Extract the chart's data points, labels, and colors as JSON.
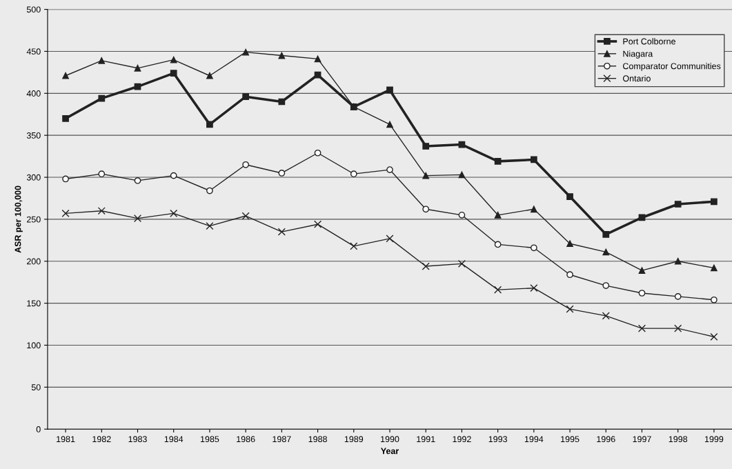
{
  "chart_data": {
    "type": "line",
    "xlabel": "Year",
    "ylabel": "ASR per 100,000",
    "categories": [
      "1981",
      "1982",
      "1983",
      "1984",
      "1985",
      "1986",
      "1987",
      "1988",
      "1989",
      "1990",
      "1991",
      "1992",
      "1993",
      "1994",
      "1995",
      "1996",
      "1997",
      "1998",
      "1999"
    ],
    "series": [
      {
        "name": "Port Colborne",
        "color": "#222222",
        "marker": "square",
        "values": [
          370,
          394,
          408,
          424,
          363,
          396,
          390,
          422,
          384,
          404,
          337,
          339,
          319,
          321,
          277,
          232,
          252,
          268,
          271
        ]
      },
      {
        "name": "Niagara",
        "color": "#222222",
        "marker": "triangle",
        "values": [
          421,
          439,
          430,
          440,
          421,
          449,
          445,
          441,
          384,
          363,
          302,
          303,
          255,
          262,
          221,
          211,
          189,
          200,
          192
        ]
      },
      {
        "name": "Comparator Communities",
        "color": "#222222",
        "marker": "circle",
        "values": [
          298,
          304,
          296,
          302,
          284,
          315,
          305,
          329,
          304,
          309,
          262,
          255,
          220,
          216,
          184,
          171,
          162,
          158,
          154
        ]
      },
      {
        "name": "Ontario",
        "color": "#222222",
        "marker": "cross",
        "values": [
          257,
          260,
          251,
          257,
          242,
          254,
          235,
          244,
          218,
          227,
          194,
          197,
          166,
          168,
          143,
          135,
          120,
          120,
          110
        ]
      }
    ],
    "ylim": [
      0,
      500
    ],
    "yticks": [
      0,
      50,
      100,
      150,
      200,
      250,
      300,
      350,
      400,
      450,
      500
    ],
    "grid": "y",
    "legend": "top right",
    "line_style": "solid"
  }
}
